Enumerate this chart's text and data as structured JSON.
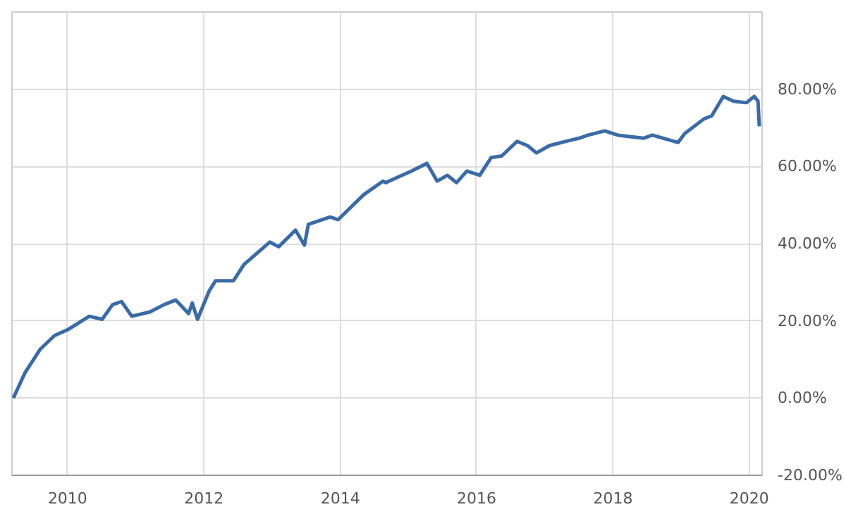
{
  "chart_data": {
    "type": "line",
    "x": [
      "2009-03-16",
      "2009-05-17",
      "2009-08-08",
      "2009-10-23",
      "2010-01-01",
      "2010-04-27",
      "2010-07-05",
      "2010-08-30",
      "2010-10-17",
      "2010-12-11",
      "2011-03-18",
      "2011-06-02",
      "2011-08-03",
      "2011-10-11",
      "2011-10-31",
      "2011-11-28",
      "2012-01-29",
      "2012-03-04",
      "2012-06-08",
      "2012-08-03",
      "2012-12-19",
      "2013-02-05",
      "2013-05-06",
      "2013-06-23",
      "2013-07-14",
      "2013-11-08",
      "2013-12-20",
      "2014-05-07",
      "2014-08-18",
      "2014-09-01",
      "2015-01-17",
      "2015-04-10",
      "2015-06-04",
      "2015-07-29",
      "2015-09-16",
      "2015-11-10",
      "2016-01-18",
      "2016-03-20",
      "2016-05-15",
      "2016-08-05",
      "2016-09-30",
      "2016-11-17",
      "2017-01-26",
      "2017-04-25",
      "2017-07-03",
      "2017-08-21",
      "2017-11-18",
      "2018-01-27",
      "2018-06-13",
      "2018-07-31",
      "2018-12-16",
      "2019-01-20",
      "2019-05-03",
      "2019-06-14",
      "2019-08-15",
      "2019-10-09",
      "2019-12-17",
      "2020-01-28",
      "2020-02-17",
      "2020-02-24"
    ],
    "series": [
      {
        "color": "#3b6ba5",
        "values": [
          0,
          6.5,
          12.7,
          16.2,
          17.7,
          21.2,
          20.4,
          24.2,
          25,
          21.2,
          22.3,
          24.2,
          25.4,
          21.9,
          24.6,
          20.4,
          27.7,
          30.4,
          30.4,
          34.6,
          40.4,
          39.2,
          43.5,
          39.6,
          45,
          46.9,
          46.2,
          52.7,
          56.2,
          55.8,
          58.8,
          60.8,
          56.2,
          57.7,
          55.8,
          58.8,
          57.7,
          62.3,
          62.7,
          66.5,
          65.4,
          63.5,
          65.4,
          66.5,
          67.3,
          68.1,
          69.2,
          68.1,
          67.3,
          68.1,
          66.2,
          68.5,
          72.3,
          73.1,
          78.1,
          76.9,
          76.5,
          78.1,
          76.9,
          70.4
        ]
      }
    ],
    "xlim": [
      "2009-03-09",
      "2020-03-10"
    ],
    "xticks": [
      {
        "value": "2010-01-01",
        "label": "2010"
      },
      {
        "value": "2012-01-01",
        "label": "2012"
      },
      {
        "value": "2014-01-01",
        "label": "2014"
      },
      {
        "value": "2016-01-01",
        "label": "2016"
      },
      {
        "value": "2018-01-01",
        "label": "2018"
      },
      {
        "value": "2020-01-01",
        "label": "2020"
      }
    ],
    "ylim": [
      -20,
      100
    ],
    "yticks": [
      {
        "value": -20,
        "label": "-20.00%"
      },
      {
        "value": 0,
        "label": "0.00%"
      },
      {
        "value": 20,
        "label": "20.00%"
      },
      {
        "value": 40,
        "label": "40.00%"
      },
      {
        "value": 60,
        "label": "60.00%"
      },
      {
        "value": 80,
        "label": "80.00%"
      }
    ],
    "grid": true,
    "line_style": "solid",
    "marker": "none"
  }
}
